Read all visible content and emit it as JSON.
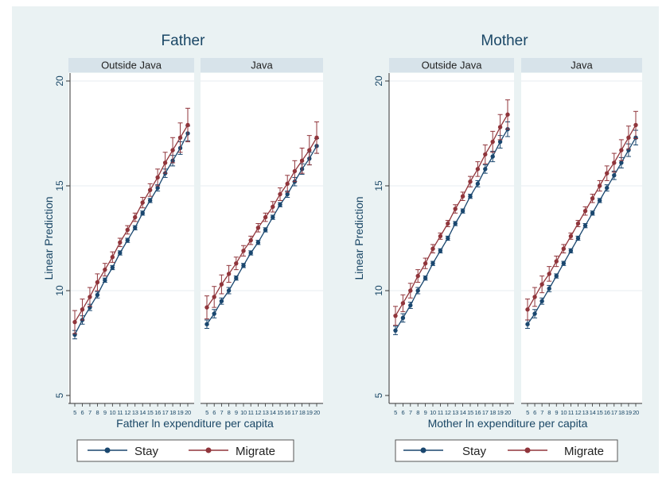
{
  "colors": {
    "outer_background": "#ffffff",
    "panel_background": "#eaf2f3",
    "plot_background": "#ffffff",
    "strip_background": "#d7e3ea",
    "gridline": "#e7eef0",
    "text": "#1a4766",
    "stay": "#1a476f",
    "migrate": "#90353b"
  },
  "chart_data": [
    {
      "type": "line",
      "title": "Father",
      "ylabel": "Linear Prediction",
      "xlabel": "Father ln expenditure per capita",
      "ylim": [
        5,
        20
      ],
      "yticks": [
        5,
        10,
        15,
        20
      ],
      "grid": true,
      "error_bars": true,
      "legend_position": "bottom",
      "legend": [
        "Stay",
        "Migrate"
      ],
      "x": [
        5,
        6,
        7,
        8,
        9,
        10,
        11,
        12,
        13,
        14,
        15,
        16,
        17,
        18,
        19,
        20
      ],
      "facets": [
        {
          "label": "Outside Java",
          "series": [
            {
              "name": "Stay",
              "values": [
                7.9,
                8.6,
                9.2,
                9.8,
                10.5,
                11.1,
                11.8,
                12.4,
                13.0,
                13.7,
                14.3,
                14.9,
                15.6,
                16.2,
                16.8,
                17.5
              ],
              "ci_half": [
                0.2,
                0.2,
                0.15,
                0.15,
                0.1,
                0.1,
                0.1,
                0.1,
                0.1,
                0.1,
                0.1,
                0.15,
                0.2,
                0.25,
                0.3,
                0.35
              ]
            },
            {
              "name": "Migrate",
              "values": [
                8.5,
                9.1,
                9.7,
                10.4,
                11.0,
                11.6,
                12.3,
                12.9,
                13.5,
                14.2,
                14.8,
                15.4,
                16.1,
                16.7,
                17.3,
                17.9
              ],
              "ci_half": [
                0.55,
                0.5,
                0.45,
                0.4,
                0.3,
                0.25,
                0.2,
                0.2,
                0.2,
                0.25,
                0.3,
                0.4,
                0.5,
                0.6,
                0.7,
                0.8
              ]
            }
          ]
        },
        {
          "label": "Java",
          "series": [
            {
              "name": "Stay",
              "values": [
                8.4,
                8.9,
                9.5,
                10.0,
                10.6,
                11.2,
                11.8,
                12.3,
                12.9,
                13.5,
                14.1,
                14.6,
                15.2,
                15.8,
                16.3,
                16.9
              ],
              "ci_half": [
                0.2,
                0.2,
                0.15,
                0.15,
                0.1,
                0.1,
                0.1,
                0.1,
                0.1,
                0.1,
                0.1,
                0.15,
                0.2,
                0.25,
                0.3,
                0.35
              ]
            },
            {
              "name": "Migrate",
              "values": [
                9.2,
                9.7,
                10.3,
                10.8,
                11.3,
                11.9,
                12.4,
                13.0,
                13.5,
                14.0,
                14.6,
                15.1,
                15.7,
                16.2,
                16.7,
                17.3
              ],
              "ci_half": [
                0.55,
                0.5,
                0.45,
                0.4,
                0.3,
                0.25,
                0.2,
                0.2,
                0.2,
                0.25,
                0.3,
                0.4,
                0.5,
                0.6,
                0.7,
                0.75
              ]
            }
          ]
        }
      ]
    },
    {
      "type": "line",
      "title": "Mother",
      "ylabel": "Linear Prediction",
      "xlabel": "Mother ln expenditure per capita",
      "ylim": [
        5,
        20
      ],
      "yticks": [
        5,
        10,
        15,
        20
      ],
      "grid": true,
      "error_bars": true,
      "legend_position": "bottom",
      "legend": [
        "Stay",
        "Migrate"
      ],
      "x": [
        5,
        6,
        7,
        8,
        9,
        10,
        11,
        12,
        13,
        14,
        15,
        16,
        17,
        18,
        19,
        20
      ],
      "facets": [
        {
          "label": "Outside Java",
          "series": [
            {
              "name": "Stay",
              "values": [
                8.1,
                8.7,
                9.3,
                10.0,
                10.6,
                11.3,
                11.9,
                12.5,
                13.2,
                13.8,
                14.5,
                15.1,
                15.8,
                16.4,
                17.1,
                17.7
              ],
              "ci_half": [
                0.2,
                0.2,
                0.15,
                0.15,
                0.1,
                0.1,
                0.1,
                0.1,
                0.1,
                0.1,
                0.1,
                0.15,
                0.2,
                0.25,
                0.3,
                0.35
              ]
            },
            {
              "name": "Migrate",
              "values": [
                8.8,
                9.4,
                10.0,
                10.7,
                11.3,
                12.0,
                12.6,
                13.2,
                13.9,
                14.5,
                15.2,
                15.8,
                16.5,
                17.1,
                17.8,
                18.4
              ],
              "ci_half": [
                0.45,
                0.4,
                0.35,
                0.3,
                0.25,
                0.2,
                0.15,
                0.15,
                0.2,
                0.2,
                0.25,
                0.35,
                0.45,
                0.5,
                0.6,
                0.7
              ]
            }
          ]
        },
        {
          "label": "Java",
          "series": [
            {
              "name": "Stay",
              "values": [
                8.4,
                8.9,
                9.5,
                10.1,
                10.7,
                11.3,
                11.9,
                12.5,
                13.1,
                13.7,
                14.3,
                14.9,
                15.5,
                16.1,
                16.7,
                17.3
              ],
              "ci_half": [
                0.2,
                0.2,
                0.15,
                0.15,
                0.1,
                0.1,
                0.1,
                0.1,
                0.1,
                0.1,
                0.1,
                0.15,
                0.2,
                0.25,
                0.3,
                0.35
              ]
            },
            {
              "name": "Migrate",
              "values": [
                9.1,
                9.7,
                10.3,
                10.8,
                11.4,
                12.0,
                12.6,
                13.2,
                13.8,
                14.4,
                15.0,
                15.6,
                16.1,
                16.7,
                17.3,
                17.9
              ],
              "ci_half": [
                0.5,
                0.45,
                0.4,
                0.35,
                0.25,
                0.2,
                0.15,
                0.15,
                0.2,
                0.2,
                0.25,
                0.35,
                0.45,
                0.5,
                0.55,
                0.65
              ]
            }
          ]
        }
      ]
    }
  ]
}
